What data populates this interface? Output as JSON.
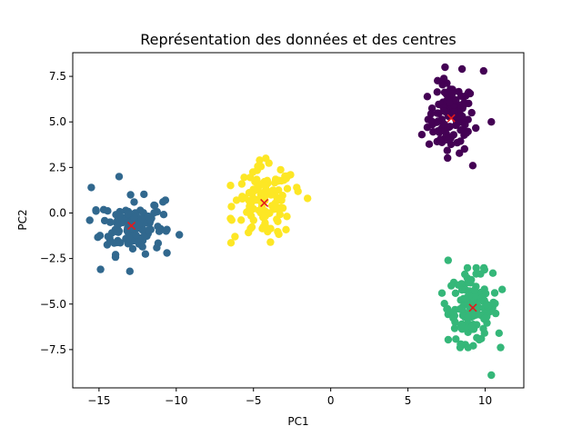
{
  "chart_data": {
    "type": "scatter",
    "title": "Représentation des données et des centres",
    "xlabel": "PC1",
    "ylabel": "PC2",
    "xlim": [
      -16.7,
      12.5
    ],
    "ylim": [
      -9.6,
      8.8
    ],
    "xticks": [
      -15,
      -10,
      -5,
      0,
      5,
      10
    ],
    "yticks": [
      -7.5,
      -5.0,
      -2.5,
      0.0,
      2.5,
      5.0,
      7.5
    ],
    "xtick_labels": [
      "−15",
      "−10",
      "−5",
      "0",
      "5",
      "10"
    ],
    "ytick_labels": [
      "−7.5",
      "−5.0",
      "−2.5",
      "0.0",
      "2.5",
      "5.0",
      "7.5"
    ],
    "grid": false,
    "clusters": [
      {
        "color": "#440154",
        "center": [
          7.8,
          5.2
        ],
        "spread": [
          0.75,
          0.95
        ],
        "count": 110,
        "extremes": [
          [
            7.4,
            8.0
          ],
          [
            8.5,
            7.9
          ],
          [
            9.9,
            7.8
          ],
          [
            9.2,
            2.6
          ],
          [
            5.9,
            4.3
          ],
          [
            10.4,
            5.0
          ]
        ]
      },
      {
        "color": "#31688e",
        "center": [
          -12.9,
          -0.7
        ],
        "spread": [
          1.0,
          0.75
        ],
        "count": 130,
        "extremes": [
          [
            -15.5,
            1.4
          ],
          [
            -15.6,
            -0.4
          ],
          [
            -13.7,
            2.0
          ],
          [
            -14.9,
            -3.1
          ],
          [
            -13.0,
            -3.2
          ],
          [
            -9.8,
            -1.2
          ],
          [
            -10.7,
            0.7
          ]
        ]
      },
      {
        "color": "#35b779",
        "center": [
          9.2,
          -5.2
        ],
        "spread": [
          0.8,
          0.95
        ],
        "count": 130,
        "extremes": [
          [
            7.6,
            -2.6
          ],
          [
            10.5,
            -3.3
          ],
          [
            10.4,
            -8.9
          ],
          [
            8.4,
            -7.2
          ],
          [
            7.2,
            -4.4
          ],
          [
            11.1,
            -4.2
          ],
          [
            10.9,
            -6.6
          ]
        ]
      },
      {
        "color": "#fde725",
        "center": [
          -4.3,
          0.55
        ],
        "spread": [
          0.95,
          0.95
        ],
        "count": 115,
        "extremes": [
          [
            -6.1,
            0.7
          ],
          [
            -6.2,
            -1.3
          ],
          [
            -4.6,
            2.9
          ],
          [
            -3.9,
            -1.6
          ],
          [
            -1.5,
            0.8
          ],
          [
            -2.2,
            1.4
          ],
          [
            -2.6,
            2.1
          ],
          [
            -4.2,
            3.0
          ]
        ]
      }
    ],
    "centers_marker": {
      "symbol": "x",
      "color": "#e31a1c"
    }
  }
}
